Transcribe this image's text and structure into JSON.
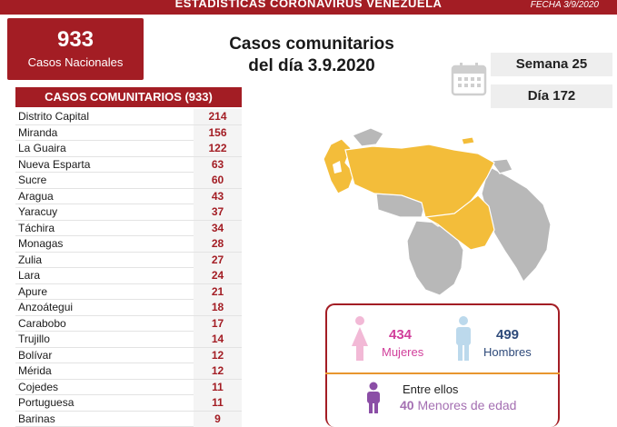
{
  "header": {
    "title": "ESTADÍSTICAS CORONAVIRUS VENEZUELA",
    "date": "FECHA 3/9/2020"
  },
  "total": {
    "value": "933",
    "label": "Casos Nacionales"
  },
  "headline": {
    "line1": "Casos comunitarios",
    "line2": "del día 3.9.2020"
  },
  "info": {
    "week": "Semana 25",
    "day": "Día 172"
  },
  "table": {
    "title": "CASOS COMUNITARIOS (933)",
    "rows": [
      {
        "state": "Distrito Capital",
        "value": "214"
      },
      {
        "state": "Miranda",
        "value": "156"
      },
      {
        "state": "La Guaira",
        "value": "122"
      },
      {
        "state": "Nueva Esparta",
        "value": "63"
      },
      {
        "state": "Sucre",
        "value": "60"
      },
      {
        "state": "Aragua",
        "value": "43"
      },
      {
        "state": "Yaracuy",
        "value": "37"
      },
      {
        "state": "Táchira",
        "value": "34"
      },
      {
        "state": "Monagas",
        "value": "28"
      },
      {
        "state": "Zulia",
        "value": "27"
      },
      {
        "state": "Lara",
        "value": "24"
      },
      {
        "state": "Apure",
        "value": "21"
      },
      {
        "state": "Anzoátegui",
        "value": "18"
      },
      {
        "state": "Carabobo",
        "value": "17"
      },
      {
        "state": "Trujillo",
        "value": "14"
      },
      {
        "state": "Bolívar",
        "value": "12"
      },
      {
        "state": "Mérida",
        "value": "12"
      },
      {
        "state": "Cojedes",
        "value": "11"
      },
      {
        "state": "Portuguesa",
        "value": "11"
      },
      {
        "state": "Barinas",
        "value": "9"
      }
    ]
  },
  "stats": {
    "women_count": "434",
    "women_label": "Mujeres",
    "men_count": "499",
    "men_label": "Hombres",
    "among_label": "Entre ellos",
    "minors_count": "40",
    "minors_label": "Menores de edad"
  },
  "colors": {
    "brand_red": "#a31d24",
    "map_affected": "#f3bd3a",
    "map_unaffected": "#b8b8b8",
    "women": "#d13f9b",
    "men": "#2e4a7a",
    "minors": "#a46fb2",
    "divider": "#e8962f"
  },
  "icons": {
    "calendar": "calendar-icon",
    "female": "female-icon",
    "male": "male-icon",
    "child": "child-icon"
  }
}
